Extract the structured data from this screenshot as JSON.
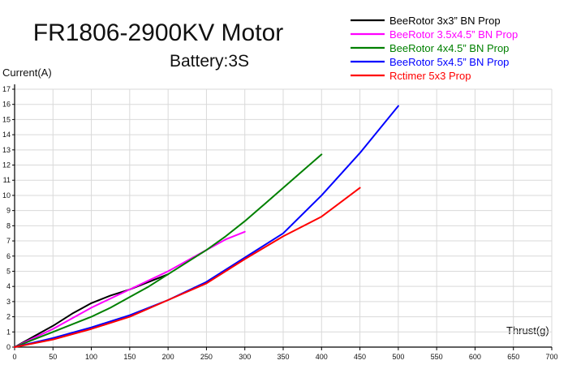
{
  "chart_data": {
    "type": "line",
    "title": "FR1806-2900KV Motor",
    "subtitle": "Battery:3S",
    "xlabel": "Thrust(g)",
    "ylabel": "Current(A)",
    "xlim": [
      0,
      700
    ],
    "ylim": [
      0,
      17
    ],
    "xticks": [
      0,
      50,
      100,
      150,
      200,
      250,
      300,
      350,
      400,
      450,
      500,
      550,
      600,
      650,
      700
    ],
    "yticks": [
      0,
      1,
      2,
      3,
      4,
      5,
      6,
      7,
      8,
      9,
      10,
      11,
      12,
      13,
      14,
      15,
      16,
      17
    ],
    "grid": true,
    "legend_position": "top-right",
    "series": [
      {
        "name": "BeeRotor 3x3” BN Prop",
        "color": "#000000",
        "x": [
          0,
          25,
          50,
          75,
          100,
          125,
          150,
          175,
          200
        ],
        "y": [
          0,
          0.7,
          1.4,
          2.2,
          2.9,
          3.4,
          3.8,
          4.3,
          4.8
        ]
      },
      {
        "name": "BeeRotor 3.5x4.5” BN Prop",
        "color": "#ff00ff",
        "x": [
          0,
          25,
          50,
          75,
          100,
          125,
          150,
          175,
          200,
          225,
          250,
          275,
          300
        ],
        "y": [
          0,
          0.6,
          1.2,
          1.9,
          2.6,
          3.2,
          3.8,
          4.4,
          5.0,
          5.7,
          6.4,
          7.1,
          7.6
        ]
      },
      {
        "name": "BeeRotor 4x4.5” BN Prop",
        "color": "#008000",
        "x": [
          0,
          25,
          50,
          75,
          100,
          125,
          150,
          175,
          200,
          225,
          250,
          275,
          300,
          325,
          350,
          375,
          400
        ],
        "y": [
          0,
          0.5,
          1.0,
          1.5,
          2.0,
          2.6,
          3.3,
          4.0,
          4.8,
          5.6,
          6.4,
          7.3,
          8.3,
          9.4,
          10.5,
          11.6,
          12.7
        ]
      },
      {
        "name": "BeeRotor 5x4.5” BN Prop",
        "color": "#0000ff",
        "x": [
          0,
          50,
          100,
          150,
          200,
          250,
          300,
          350,
          400,
          450,
          500
        ],
        "y": [
          0,
          0.6,
          1.3,
          2.1,
          3.1,
          4.3,
          5.9,
          7.5,
          10.0,
          12.8,
          15.9
        ]
      },
      {
        "name": "Rctimer 5x3 Prop",
        "color": "#ff0000",
        "x": [
          0,
          50,
          100,
          150,
          200,
          250,
          300,
          350,
          400,
          450
        ],
        "y": [
          0,
          0.5,
          1.2,
          2.0,
          3.1,
          4.2,
          5.8,
          7.3,
          8.6,
          10.5
        ]
      }
    ]
  }
}
